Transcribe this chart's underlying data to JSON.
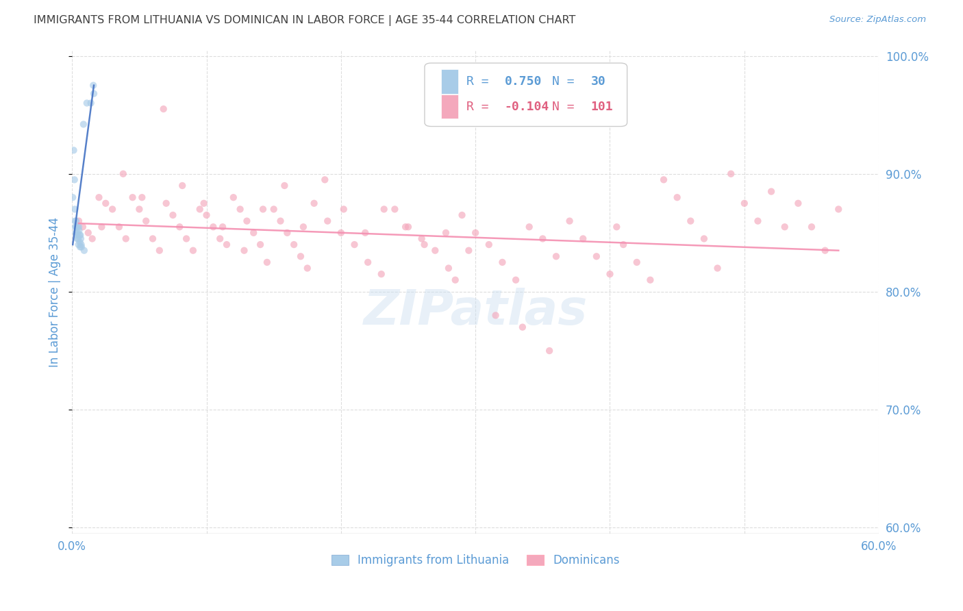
{
  "title": "IMMIGRANTS FROM LITHUANIA VS DOMINICAN IN LABOR FORCE | AGE 35-44 CORRELATION CHART",
  "source": "Source: ZipAtlas.com",
  "ylabel": "In Labor Force | Age 35-44",
  "lithuania_scatter_x": [
    0.05,
    0.12,
    0.18,
    0.2,
    0.22,
    0.25,
    0.28,
    0.3,
    0.32,
    0.35,
    0.38,
    0.4,
    0.42,
    0.45,
    0.48,
    0.5,
    0.52,
    0.55,
    0.58,
    0.6,
    0.62,
    0.65,
    0.68,
    0.7,
    0.85,
    0.9,
    1.1,
    1.4,
    1.58,
    1.62
  ],
  "lithuania_scatter_y": [
    88.0,
    92.0,
    89.5,
    87.0,
    86.0,
    85.5,
    85.0,
    86.0,
    85.5,
    84.8,
    84.5,
    85.5,
    85.0,
    84.5,
    84.0,
    85.5,
    85.2,
    84.8,
    84.2,
    83.8,
    84.8,
    84.5,
    84.0,
    83.8,
    94.2,
    83.5,
    96.0,
    96.0,
    97.5,
    96.8
  ],
  "dominican_scatter_x": [
    0.5,
    0.8,
    1.2,
    1.5,
    2.0,
    2.5,
    3.0,
    3.5,
    4.0,
    4.5,
    5.0,
    5.5,
    6.0,
    6.5,
    7.0,
    7.5,
    8.0,
    8.5,
    9.0,
    9.5,
    10.0,
    10.5,
    11.0,
    11.5,
    12.0,
    12.5,
    13.0,
    13.5,
    14.0,
    14.5,
    15.0,
    15.5,
    16.0,
    16.5,
    17.0,
    17.5,
    18.0,
    19.0,
    20.0,
    21.0,
    22.0,
    23.0,
    24.0,
    25.0,
    26.0,
    27.0,
    28.0,
    28.5,
    29.0,
    30.0,
    31.0,
    32.0,
    33.0,
    34.0,
    35.0,
    36.0,
    37.0,
    38.0,
    39.0,
    40.0,
    40.5,
    41.0,
    42.0,
    43.0,
    44.0,
    45.0,
    46.0,
    47.0,
    48.0,
    49.0,
    50.0,
    51.0,
    52.0,
    53.0,
    54.0,
    55.0,
    56.0,
    57.0,
    2.2,
    3.8,
    5.2,
    6.8,
    8.2,
    9.8,
    11.2,
    12.8,
    14.2,
    15.8,
    17.2,
    18.8,
    20.2,
    21.8,
    23.2,
    24.8,
    26.2,
    27.8,
    29.5,
    31.5,
    33.5,
    35.5
  ],
  "dominican_scatter_y": [
    86.0,
    85.5,
    85.0,
    84.5,
    88.0,
    87.5,
    87.0,
    85.5,
    84.5,
    88.0,
    87.0,
    86.0,
    84.5,
    83.5,
    87.5,
    86.5,
    85.5,
    84.5,
    83.5,
    87.0,
    86.5,
    85.5,
    84.5,
    84.0,
    88.0,
    87.0,
    86.0,
    85.0,
    84.0,
    82.5,
    87.0,
    86.0,
    85.0,
    84.0,
    83.0,
    82.0,
    87.5,
    86.0,
    85.0,
    84.0,
    82.5,
    81.5,
    87.0,
    85.5,
    84.5,
    83.5,
    82.0,
    81.0,
    86.5,
    85.0,
    84.0,
    82.5,
    81.0,
    85.5,
    84.5,
    83.0,
    86.0,
    84.5,
    83.0,
    81.5,
    85.5,
    84.0,
    82.5,
    81.0,
    89.5,
    88.0,
    86.0,
    84.5,
    82.0,
    90.0,
    87.5,
    86.0,
    88.5,
    85.5,
    87.5,
    85.5,
    83.5,
    87.0,
    85.5,
    90.0,
    88.0,
    95.5,
    89.0,
    87.5,
    85.5,
    83.5,
    87.0,
    89.0,
    85.5,
    89.5,
    87.0,
    85.0,
    87.0,
    85.5,
    84.0,
    85.0,
    83.5,
    78.0,
    77.0,
    75.0
  ],
  "lithuania_line_x": [
    0.05,
    1.62
  ],
  "lithuania_line_y": [
    84.0,
    97.5
  ],
  "dominican_line_x": [
    0.5,
    57.0
  ],
  "dominican_line_y": [
    85.8,
    83.5
  ],
  "xlim": [
    0.0,
    60.0
  ],
  "ylim": [
    59.5,
    100.5
  ],
  "yticks": [
    60.0,
    70.0,
    80.0,
    90.0,
    100.0
  ],
  "ytick_labels": [
    "60.0%",
    "70.0%",
    "80.0%",
    "90.0%",
    "100.0%"
  ],
  "xticks": [
    0.0,
    10.0,
    20.0,
    30.0,
    40.0,
    50.0,
    60.0
  ],
  "xtick_labels_show": [
    "0.0%",
    "",
    "",
    "",
    "",
    "",
    "60.0%"
  ],
  "scatter_size": 55,
  "scatter_alpha": 0.65,
  "line_width": 1.8,
  "lithuania_color": "#a8cce8",
  "dominican_color": "#f4a8bc",
  "lithuania_line_color": "#4472c4",
  "dominican_line_color": "#f48fb1",
  "grid_color": "#dddddd",
  "axis_color": "#5b9bd5",
  "title_color": "#404040",
  "bg_color": "#ffffff",
  "watermark": "ZIPatlas",
  "legend_r1": "R =",
  "legend_v1": "0.750",
  "legend_n1_label": "N =",
  "legend_n1_val": "30",
  "legend_r2": "R =",
  "legend_v2": "-0.104",
  "legend_n2_label": "N =",
  "legend_n2_val": "101"
}
